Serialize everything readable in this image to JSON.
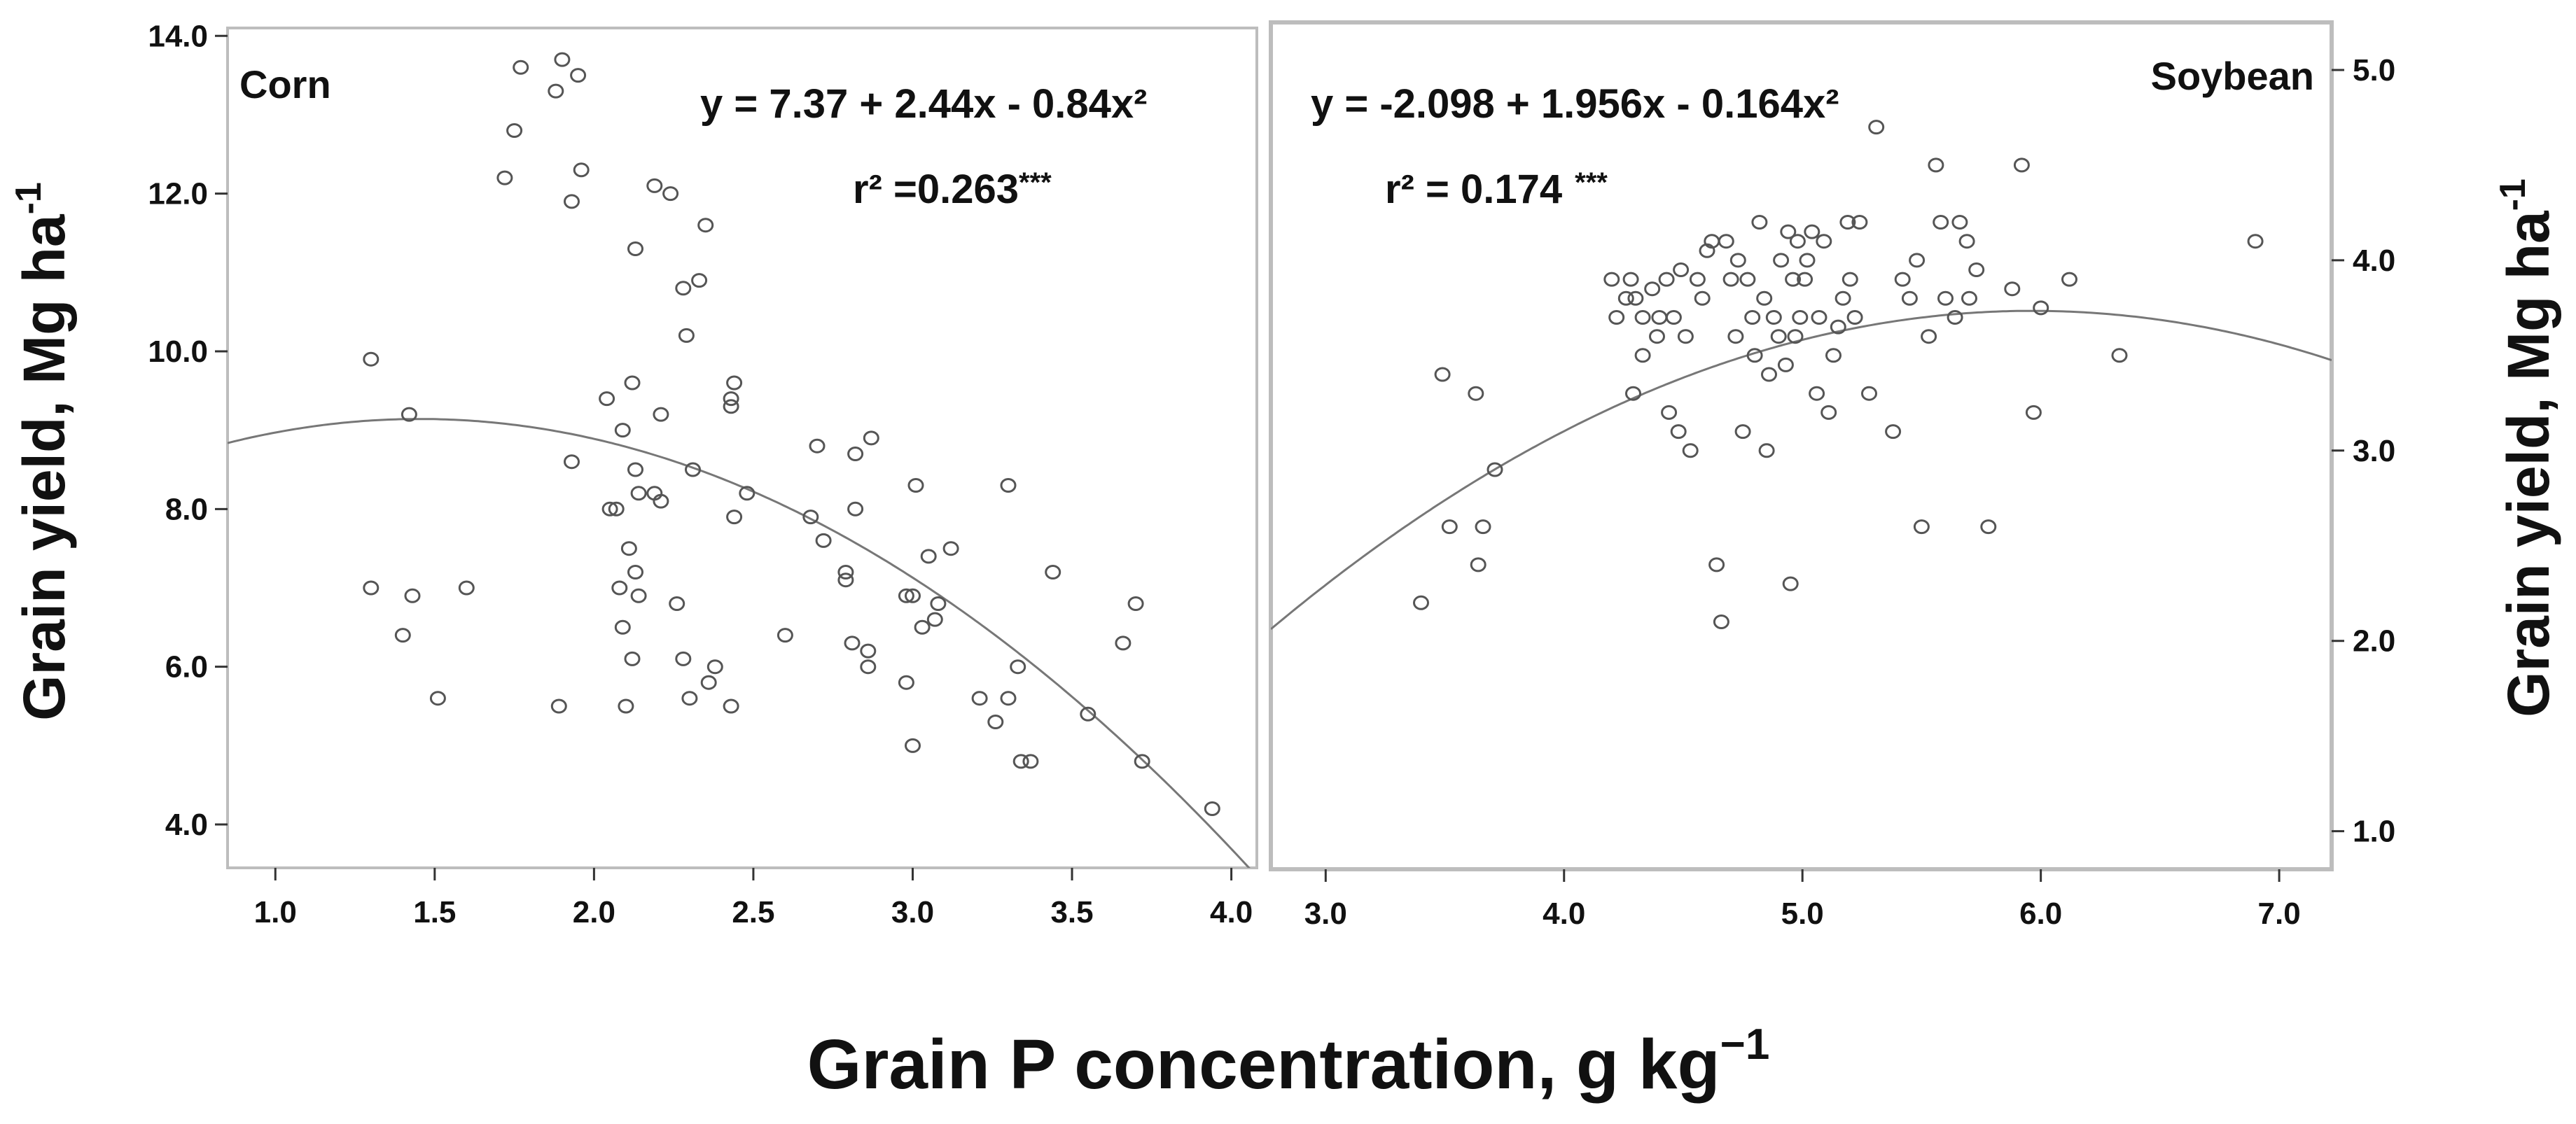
{
  "figure": {
    "shared_xlabel": {
      "main": "Grain P concentration, g kg",
      "sup": "−1"
    },
    "left_ylabel": {
      "main": "Grain yield, Mg ha",
      "sup": "-1"
    },
    "right_ylabel": {
      "main": "Grain yield, Mg ha",
      "sup": "-1"
    }
  },
  "colors": {
    "marker": "#555555",
    "curve": "#777777",
    "frame": "#bdbdbd",
    "text": "#111111"
  },
  "chart_data": [
    {
      "type": "scatter",
      "title": "Corn",
      "equation": "y = 7.37 + 2.44x -  0.84x²",
      "r2_label": "r² =0.263",
      "significance": "***",
      "xlabel": "Grain P concentration, g kg−1",
      "ylabel": "Grain yield, Mg ha-1",
      "yaxis_side": "left",
      "xlim": [
        0.85,
        4.08
      ],
      "ylim": [
        3.45,
        14.1
      ],
      "xticks": [
        1.0,
        1.5,
        2.0,
        2.5,
        3.0,
        3.5,
        4.0
      ],
      "xtick_labels": [
        "1.0",
        "1.5",
        "2.0",
        "2.5",
        "3.0",
        "3.5",
        "4.0"
      ],
      "yticks": [
        4.0,
        6.0,
        8.0,
        10.0,
        12.0,
        14.0
      ],
      "ytick_labels": [
        "4.0",
        "6.0",
        "8.0",
        "10.0",
        "12.0",
        "14.0"
      ],
      "fit": {
        "intercept": 7.37,
        "linear": 2.44,
        "quadratic": -0.84
      },
      "points": [
        [
          1.3,
          9.9
        ],
        [
          1.3,
          7.0
        ],
        [
          1.4,
          6.4
        ],
        [
          1.42,
          9.2
        ],
        [
          1.43,
          6.9
        ],
        [
          1.51,
          5.6
        ],
        [
          1.6,
          7.0
        ],
        [
          1.72,
          12.2
        ],
        [
          1.75,
          12.8
        ],
        [
          1.77,
          13.6
        ],
        [
          1.88,
          13.3
        ],
        [
          1.9,
          13.7
        ],
        [
          1.89,
          5.5
        ],
        [
          1.93,
          8.6
        ],
        [
          1.93,
          11.9
        ],
        [
          1.95,
          13.5
        ],
        [
          1.96,
          12.3
        ],
        [
          2.04,
          9.4
        ],
        [
          2.05,
          8.0
        ],
        [
          2.07,
          8.0
        ],
        [
          2.08,
          7.0
        ],
        [
          2.09,
          6.5
        ],
        [
          2.09,
          9.0
        ],
        [
          2.1,
          5.5
        ],
        [
          2.11,
          7.5
        ],
        [
          2.12,
          6.1
        ],
        [
          2.12,
          9.6
        ],
        [
          2.13,
          8.5
        ],
        [
          2.13,
          7.2
        ],
        [
          2.13,
          11.3
        ],
        [
          2.14,
          8.2
        ],
        [
          2.14,
          6.9
        ],
        [
          2.19,
          12.1
        ],
        [
          2.19,
          8.2
        ],
        [
          2.21,
          9.2
        ],
        [
          2.21,
          8.1
        ],
        [
          2.24,
          12.0
        ],
        [
          2.26,
          6.8
        ],
        [
          2.28,
          6.1
        ],
        [
          2.28,
          10.8
        ],
        [
          2.29,
          10.2
        ],
        [
          2.3,
          5.6
        ],
        [
          2.31,
          8.5
        ],
        [
          2.33,
          10.9
        ],
        [
          2.35,
          11.6
        ],
        [
          2.36,
          5.8
        ],
        [
          2.38,
          6.0
        ],
        [
          2.43,
          9.4
        ],
        [
          2.43,
          9.3
        ],
        [
          2.44,
          9.6
        ],
        [
          2.43,
          5.5
        ],
        [
          2.44,
          7.9
        ],
        [
          2.48,
          8.2
        ],
        [
          2.6,
          6.4
        ],
        [
          2.68,
          7.9
        ],
        [
          2.7,
          8.8
        ],
        [
          2.72,
          7.6
        ],
        [
          2.79,
          7.2
        ],
        [
          2.79,
          7.1
        ],
        [
          2.81,
          6.3
        ],
        [
          2.82,
          8.7
        ],
        [
          2.82,
          8.0
        ],
        [
          2.86,
          6.2
        ],
        [
          2.86,
          6.0
        ],
        [
          2.87,
          8.9
        ],
        [
          2.98,
          5.8
        ],
        [
          2.98,
          6.9
        ],
        [
          3.0,
          6.9
        ],
        [
          3.0,
          5.0
        ],
        [
          3.01,
          8.3
        ],
        [
          3.03,
          6.5
        ],
        [
          3.05,
          7.4
        ],
        [
          3.07,
          6.6
        ],
        [
          3.08,
          6.8
        ],
        [
          3.12,
          7.5
        ],
        [
          3.21,
          5.6
        ],
        [
          3.26,
          5.3
        ],
        [
          3.3,
          8.3
        ],
        [
          3.3,
          5.6
        ],
        [
          3.33,
          6.0
        ],
        [
          3.34,
          4.8
        ],
        [
          3.37,
          4.8
        ],
        [
          3.44,
          7.2
        ],
        [
          3.55,
          5.4
        ],
        [
          3.66,
          6.3
        ],
        [
          3.7,
          6.8
        ],
        [
          3.72,
          4.8
        ],
        [
          3.94,
          4.2
        ]
      ]
    },
    {
      "type": "scatter",
      "title": "Soybean",
      "equation": "y = -2.098 + 1.956x - 0.164x²",
      "r2_label": "r² = 0.174",
      "significance": "***",
      "xlabel": "Grain P concentration, g kg−1",
      "ylabel": "Grain yield, Mg ha-1",
      "yaxis_side": "right",
      "xlim": [
        2.77,
        7.22
      ],
      "ylim": [
        0.8,
        5.25
      ],
      "xticks": [
        3.0,
        4.0,
        5.0,
        6.0,
        7.0
      ],
      "xtick_labels": [
        "3.0",
        "4.0",
        "5.0",
        "6.0",
        "7.0"
      ],
      "yticks": [
        1.0,
        2.0,
        3.0,
        4.0,
        5.0
      ],
      "ytick_labels": [
        "1.0",
        "2.0",
        "3.0",
        "4.0",
        "5.0"
      ],
      "fit": {
        "intercept": -2.098,
        "linear": 1.956,
        "quadratic": -0.164
      },
      "points": [
        [
          3.4,
          2.2
        ],
        [
          3.49,
          3.4
        ],
        [
          3.52,
          2.6
        ],
        [
          3.63,
          3.3
        ],
        [
          3.64,
          2.4
        ],
        [
          3.66,
          2.6
        ],
        [
          3.71,
          2.9
        ],
        [
          4.2,
          3.9
        ],
        [
          4.22,
          3.7
        ],
        [
          4.26,
          3.8
        ],
        [
          4.28,
          3.9
        ],
        [
          4.29,
          3.3
        ],
        [
          4.3,
          3.8
        ],
        [
          4.33,
          3.7
        ],
        [
          4.33,
          3.5
        ],
        [
          4.37,
          3.85
        ],
        [
          4.39,
          3.6
        ],
        [
          4.4,
          3.7
        ],
        [
          4.43,
          3.9
        ],
        [
          4.44,
          3.2
        ],
        [
          4.46,
          3.7
        ],
        [
          4.48,
          3.1
        ],
        [
          4.49,
          3.95
        ],
        [
          4.51,
          3.6
        ],
        [
          4.53,
          3.0
        ],
        [
          4.56,
          3.9
        ],
        [
          4.58,
          3.8
        ],
        [
          4.6,
          4.05
        ],
        [
          4.62,
          4.1
        ],
        [
          4.64,
          2.4
        ],
        [
          4.66,
          2.1
        ],
        [
          4.68,
          4.1
        ],
        [
          4.7,
          3.9
        ],
        [
          4.72,
          3.6
        ],
        [
          4.73,
          4.0
        ],
        [
          4.75,
          3.1
        ],
        [
          4.77,
          3.9
        ],
        [
          4.79,
          3.7
        ],
        [
          4.8,
          3.5
        ],
        [
          4.82,
          4.2
        ],
        [
          4.84,
          3.8
        ],
        [
          4.85,
          3.0
        ],
        [
          4.86,
          3.4
        ],
        [
          4.88,
          3.7
        ],
        [
          4.9,
          3.6
        ],
        [
          4.91,
          4.0
        ],
        [
          4.93,
          3.45
        ],
        [
          4.94,
          4.15
        ],
        [
          4.95,
          2.3
        ],
        [
          4.96,
          3.9
        ],
        [
          4.97,
          3.6
        ],
        [
          4.98,
          4.1
        ],
        [
          4.99,
          3.7
        ],
        [
          5.01,
          3.9
        ],
        [
          5.02,
          4.0
        ],
        [
          5.04,
          4.15
        ],
        [
          5.06,
          3.3
        ],
        [
          5.07,
          3.7
        ],
        [
          5.09,
          4.1
        ],
        [
          5.11,
          3.2
        ],
        [
          5.13,
          3.5
        ],
        [
          5.15,
          3.65
        ],
        [
          5.17,
          3.8
        ],
        [
          5.19,
          4.2
        ],
        [
          5.2,
          3.9
        ],
        [
          5.22,
          3.7
        ],
        [
          5.24,
          4.2
        ],
        [
          5.28,
          3.3
        ],
        [
          5.31,
          4.7
        ],
        [
          5.38,
          3.1
        ],
        [
          5.42,
          3.9
        ],
        [
          5.45,
          3.8
        ],
        [
          5.48,
          4.0
        ],
        [
          5.5,
          2.6
        ],
        [
          5.53,
          3.6
        ],
        [
          5.56,
          4.5
        ],
        [
          5.58,
          4.2
        ],
        [
          5.6,
          3.8
        ],
        [
          5.64,
          3.7
        ],
        [
          5.66,
          4.2
        ],
        [
          5.69,
          4.1
        ],
        [
          5.7,
          3.8
        ],
        [
          5.73,
          3.95
        ],
        [
          5.78,
          2.6
        ],
        [
          5.88,
          3.85
        ],
        [
          5.92,
          4.5
        ],
        [
          5.97,
          3.2
        ],
        [
          6.0,
          3.75
        ],
        [
          6.12,
          3.9
        ],
        [
          6.33,
          3.5
        ],
        [
          6.9,
          4.1
        ]
      ]
    }
  ]
}
